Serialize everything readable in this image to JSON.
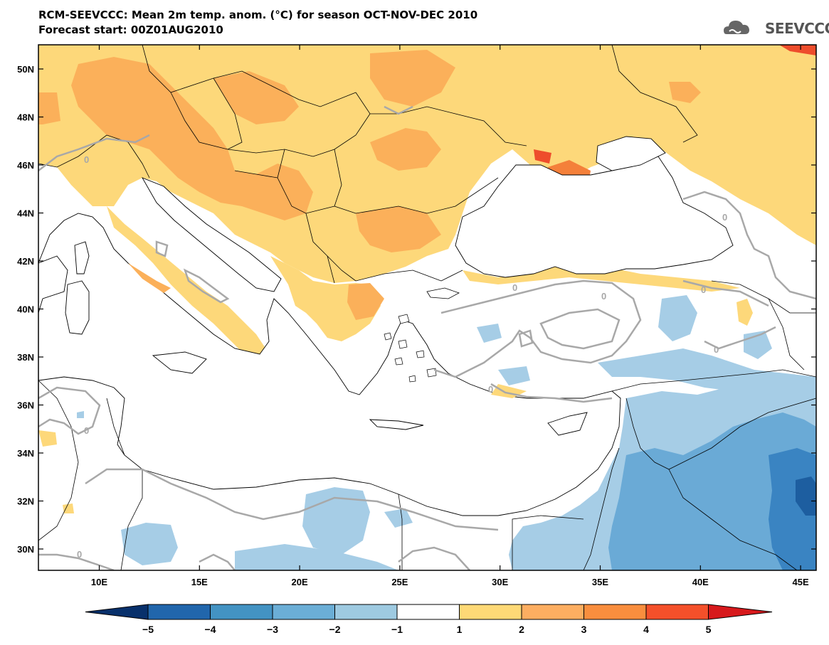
{
  "header": {
    "title": "RCM-SEEVCCC: Mean 2m temp. anom. (°C) for season OCT-NOV-DEC 2010",
    "subtitle": "Forecast start: 00Z01AUG2010"
  },
  "logo": {
    "text": "SEEVCCC",
    "icon": "cloud-icon"
  },
  "map": {
    "lat_labels": [
      "50N",
      "48N",
      "46N",
      "44N",
      "42N",
      "40N",
      "38N",
      "36N",
      "34N",
      "32N",
      "30N"
    ],
    "lon_labels": [
      "10E",
      "15E",
      "20E",
      "25E",
      "30E",
      "35E",
      "40E",
      "45E"
    ],
    "contour_label": "0"
  },
  "colorbar": {
    "labels": [
      "−5",
      "−4",
      "−3",
      "−2",
      "−1",
      "1",
      "2",
      "3",
      "4",
      "5"
    ],
    "colors": [
      "#08306b",
      "#2166ac",
      "#4393c3",
      "#6baed6",
      "#9ecae1",
      "#ffffff",
      "#fed976",
      "#fdae61",
      "#f98e3e",
      "#f4502a",
      "#d7191c"
    ]
  },
  "palette": {
    "warm1": "#fdd87a",
    "warm2": "#fbb05a",
    "warm3": "#f4803a",
    "warm4": "#ee4d2c",
    "cool1": "#a6cde6",
    "cool2": "#6aaad6",
    "cool3": "#3a84c2",
    "cool4": "#1d5ea0"
  }
}
